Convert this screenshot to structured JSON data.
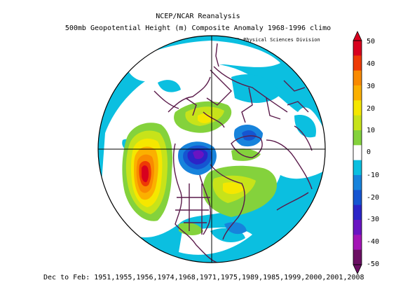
{
  "header": {
    "title": "NCEP/NCAR Reanalysis",
    "subtitle": "500mb Geopotential Height (m) Composite Anomaly 1968-1996 climo",
    "credit": "NOAA/ESRL Physical Sciences Division"
  },
  "footer": {
    "text": "Dec to Feb: 1951,1955,1956,1974,1968,1971,1975,1989,1985,1999,2000,2001,2008"
  },
  "map": {
    "projection": "north polar stereographic",
    "variable": "500mb geopotential height anomaly"
  },
  "colorbar": {
    "tick_labels": [
      "50",
      "40",
      "30",
      "20",
      "10",
      "0",
      "-10",
      "-20",
      "-30",
      "-40",
      "-50"
    ],
    "colors": [
      "#d8001e",
      "#ee3a05",
      "#f98a00",
      "#fbb000",
      "#f5e700",
      "#c7e31a",
      "#84d23c",
      "#ffffff",
      "#0bbfe0",
      "#1783dc",
      "#1555d1",
      "#2b24c8",
      "#6914c2",
      "#a314b6",
      "#6b0f63"
    ]
  }
}
